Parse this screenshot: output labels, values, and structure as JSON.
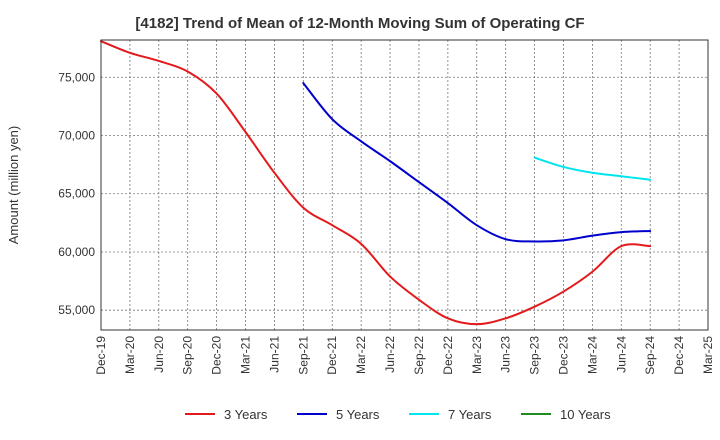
{
  "chart_data": {
    "type": "line",
    "title": "[4182]  Trend of Mean of 12-Month Moving Sum of Operating CF",
    "xlabel": "",
    "ylabel": "Amount (million yen)",
    "ylim": [
      53300,
      78200
    ],
    "yticks": [
      55000,
      60000,
      65000,
      70000,
      75000
    ],
    "ytick_labels": [
      "55,000",
      "60,000",
      "65,000",
      "70,000",
      "75,000"
    ],
    "x_months_range": [
      0,
      63
    ],
    "xticks": [
      0,
      3,
      6,
      9,
      12,
      15,
      18,
      21,
      24,
      27,
      30,
      33,
      36,
      39,
      42,
      45,
      48,
      51,
      54,
      57,
      60,
      63
    ],
    "xtick_labels": [
      "Dec-19",
      "Mar-20",
      "Jun-20",
      "Sep-20",
      "Dec-20",
      "Mar-21",
      "Jun-21",
      "Sep-21",
      "Dec-21",
      "Mar-22",
      "Jun-22",
      "Sep-22",
      "Dec-22",
      "Mar-23",
      "Jun-23",
      "Sep-23",
      "Dec-23",
      "Mar-24",
      "Jun-24",
      "Sep-24",
      "Dec-24",
      "Mar-25"
    ],
    "grid": true,
    "legend_position": "bottom",
    "series": [
      {
        "name": "3 Years",
        "color": "#e31a1c",
        "x": [
          0,
          3,
          6,
          9,
          12,
          15,
          18,
          21,
          24,
          27,
          30,
          33,
          36,
          39,
          42,
          45,
          48,
          51,
          54,
          57
        ],
        "values": [
          78100,
          77100,
          76400,
          75500,
          73600,
          70300,
          66800,
          63800,
          62300,
          60700,
          57900,
          55900,
          54300,
          53800,
          54300,
          55300,
          56600,
          58300,
          60500,
          60500
        ]
      },
      {
        "name": "5 Years",
        "color": "#0000cc",
        "x": [
          21,
          24,
          27,
          30,
          33,
          36,
          39,
          42,
          45,
          48,
          51,
          54,
          57
        ],
        "values": [
          74500,
          71400,
          69500,
          67800,
          66000,
          64200,
          62300,
          61100,
          60900,
          61000,
          61400,
          61700,
          61800
        ]
      },
      {
        "name": "7 Years",
        "color": "#00e5ee",
        "x": [
          45,
          48,
          51,
          54,
          57
        ],
        "values": [
          68100,
          67300,
          66800,
          66500,
          66200
        ]
      },
      {
        "name": "10 Years",
        "color": "#228b22",
        "x": [],
        "values": []
      }
    ]
  }
}
